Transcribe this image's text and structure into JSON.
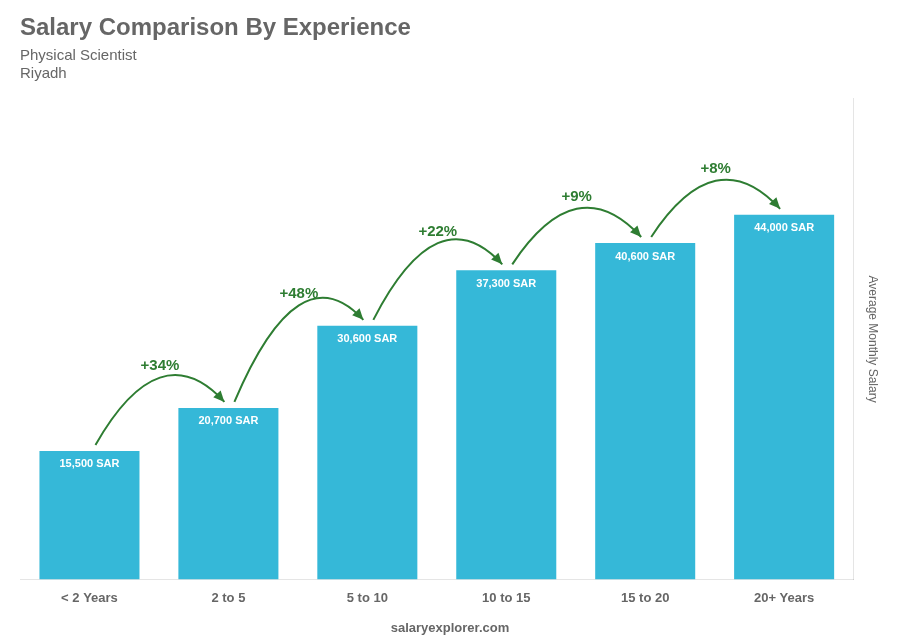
{
  "chart_data": {
    "type": "bar",
    "title": "Salary Comparison By Experience",
    "subtitle": [
      "Physical Scientist",
      "Riyadh"
    ],
    "ylabel": "Average Monthly Salary",
    "footer": "salaryexplorer.com",
    "categories": [
      "< 2 Years",
      "2 to 5",
      "5 to 10",
      "10 to 15",
      "15 to 20",
      "20+ Years"
    ],
    "values": [
      15500,
      20700,
      30600,
      37300,
      40600,
      44000
    ],
    "value_labels": [
      "15,500 SAR",
      "20,700 SAR",
      "30,600 SAR",
      "37,300 SAR",
      "40,600 SAR",
      "44,000 SAR"
    ],
    "data_labels": true,
    "annotations": [
      {
        "text": "+34%",
        "from": "< 2 Years",
        "to": "2 to 5"
      },
      {
        "text": "+48%",
        "from": "2 to 5",
        "to": "5 to 10"
      },
      {
        "text": "+22%",
        "from": "5 to 10",
        "to": "10 to 15"
      },
      {
        "text": "+9%",
        "from": "10 to 15",
        "to": "15 to 20"
      },
      {
        "text": "+8%",
        "from": "15 to 20",
        "to": "20+ Years"
      }
    ],
    "color": "#35b8d8",
    "ylim": [
      0,
      58000
    ],
    "grid": false,
    "tick_labels": "x"
  }
}
